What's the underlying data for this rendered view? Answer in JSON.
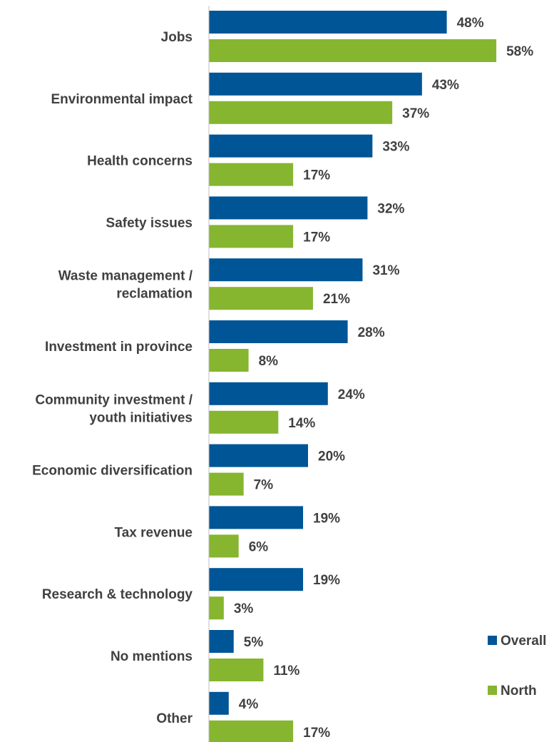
{
  "chart_data": {
    "type": "bar",
    "orientation": "horizontal",
    "categories": [
      [
        "Jobs"
      ],
      [
        "Environmental impact"
      ],
      [
        "Health concerns"
      ],
      [
        "Safety issues"
      ],
      [
        "Waste management /",
        "reclamation"
      ],
      [
        "Investment in province"
      ],
      [
        "Community investment /",
        "youth initiatives"
      ],
      [
        "Economic diversification"
      ],
      [
        "Tax revenue"
      ],
      [
        "Research & technology"
      ],
      [
        "No mentions"
      ],
      [
        "Other"
      ]
    ],
    "series": [
      {
        "name": "Overall",
        "color": "#005596",
        "values": [
          48,
          43,
          33,
          32,
          31,
          28,
          24,
          20,
          19,
          19,
          5,
          4
        ],
        "labels": [
          "48%",
          "43%",
          "33%",
          "32%",
          "31%",
          "28%",
          "24%",
          "20%",
          "19%",
          "19%",
          "5%",
          "4%"
        ]
      },
      {
        "name": "North",
        "color": "#86B52F",
        "values": [
          58,
          37,
          17,
          17,
          21,
          8,
          14,
          7,
          6,
          3,
          11,
          17
        ],
        "labels": [
          "58%",
          "37%",
          "17%",
          "17%",
          "21%",
          "8%",
          "14%",
          "7%",
          "6%",
          "3%",
          "11%",
          "17%"
        ]
      }
    ],
    "xlim": [
      0,
      100
    ],
    "grid": false,
    "legend_position": "bottom-right"
  }
}
